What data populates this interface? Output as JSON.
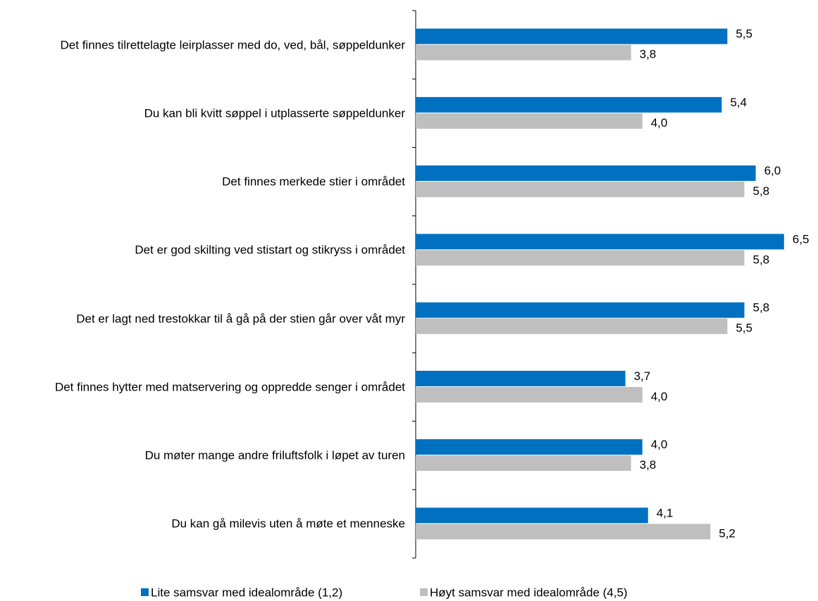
{
  "chart_data": {
    "type": "hbar",
    "categories": [
      "Det finnes tilrettelagte leirplasser med do, ved, bål, søppeldunker",
      "Du kan bli kvitt søppel i utplasserte søppeldunker",
      "Det finnes merkede stier i området",
      "Det er god skilting ved stistart og stikryss i området",
      "Det er lagt ned trestokkar til å gå på der stien går over våt myr",
      "Det finnes hytter med matservering og oppredde senger i området",
      "Du møter mange andre friluftsfolk i løpet av turen",
      "Du kan gå milevis uten å møte et menneske"
    ],
    "series": [
      {
        "name": "Lite samsvar med idealområde (1,2)",
        "color": "#0070c0",
        "values": [
          5.5,
          5.4,
          6.0,
          6.5,
          5.8,
          3.7,
          4.0,
          4.1
        ],
        "value_labels": [
          "5,5",
          "5,4",
          "6,0",
          "6,5",
          "5,8",
          "3,7",
          "4,0",
          "4,1"
        ]
      },
      {
        "name": "Høyt samsvar med idealområde (4,5)",
        "color": "#bfbfbf",
        "values": [
          3.8,
          4.0,
          5.8,
          5.8,
          5.5,
          4.0,
          3.8,
          5.2
        ],
        "value_labels": [
          "3,8",
          "4,0",
          "5,8",
          "5,8",
          "5,5",
          "4,0",
          "3,8",
          "5,2"
        ]
      }
    ],
    "xlim": [
      0,
      7
    ],
    "legend": "bottom"
  }
}
